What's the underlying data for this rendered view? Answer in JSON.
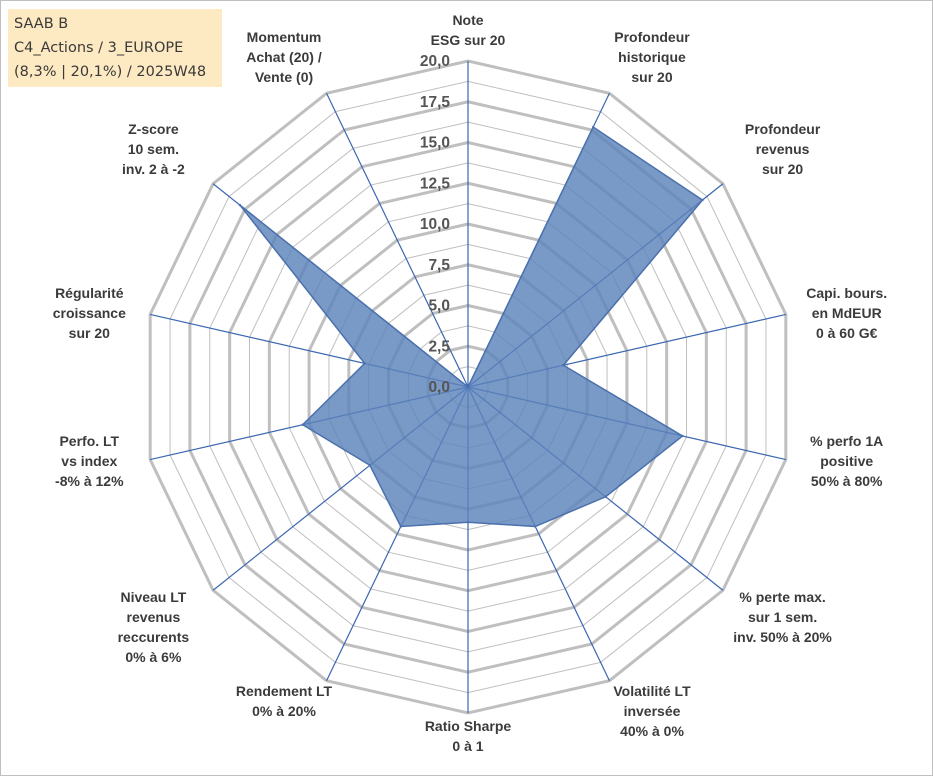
{
  "header": {
    "line1": "SAAB B",
    "line2": "C4_Actions / 3_EUROPE",
    "line3": "(8,3% | 20,1%) / 2025W48"
  },
  "colors": {
    "grid": "#bfbfbf",
    "spoke": "#3a67b0",
    "fill": "#5b82bb",
    "stroke": "#4a70ad",
    "box": "#fde9c2"
  },
  "chart_data": {
    "type": "radar",
    "title": "",
    "rmin": 0,
    "rmax": 20,
    "ticks": [
      "0,0",
      "2,5",
      "5,0",
      "7,5",
      "10,0",
      "12,5",
      "15,0",
      "17,5",
      "20,0"
    ],
    "tick_values": [
      0,
      2.5,
      5,
      7.5,
      10,
      12.5,
      15,
      17.5,
      20
    ],
    "categories": [
      [
        "Note",
        "ESG sur 20"
      ],
      [
        "Profondeur",
        "historique",
        "sur 20"
      ],
      [
        "Profondeur",
        "revenus",
        "sur 20"
      ],
      [
        "Capi. bours.",
        "en MdEUR",
        "0 à 60 G€"
      ],
      [
        "% perfo 1A",
        "positive",
        "50% à 80%"
      ],
      [
        "% perte max.",
        "sur 1 sem.",
        "inv. 50% à 20%"
      ],
      [
        "Volatilité LT",
        "inversée",
        "40% à 0%"
      ],
      [
        "Ratio Sharpe",
        "0 à 1"
      ],
      [
        "Rendement LT",
        "0% à 20%"
      ],
      [
        "Niveau LT",
        "revenus",
        "reccurents",
        "0% à 6%"
      ],
      [
        "Perfo. LT",
        "vs index",
        "-8% à 12%"
      ],
      [
        "Régularité",
        "croissance",
        "sur 20"
      ],
      [
        "Z-score",
        "10 sem.",
        "inv. 2 à -2"
      ],
      [
        "Momentum",
        "Achat (20) /",
        "Vente (0)"
      ]
    ],
    "series": [
      {
        "name": "SAAB B",
        "values": [
          0,
          17.7,
          18.4,
          6.0,
          13.5,
          10.8,
          9.5,
          8.3,
          9.5,
          7.7,
          10.4,
          6.5,
          17.9,
          0
        ]
      }
    ]
  }
}
